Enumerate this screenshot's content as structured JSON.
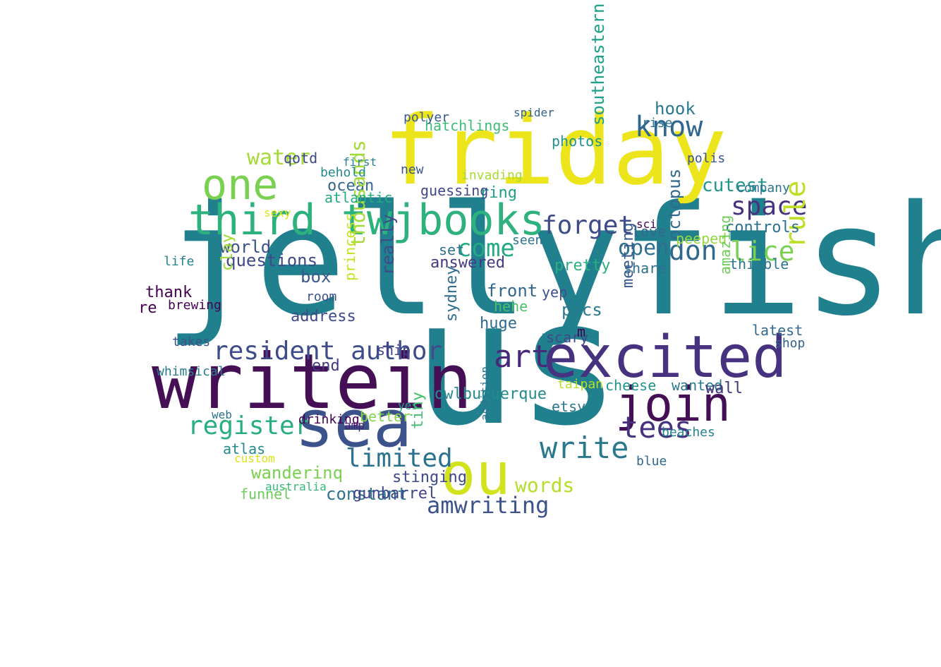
{
  "cloud": {
    "words": [
      {
        "text": "jellyfish",
        "color": "#21808d"
      },
      {
        "text": "us",
        "color": "#21808d"
      },
      {
        "text": "friday",
        "color": "#ece51b"
      },
      {
        "text": "writein",
        "color": "#440f55"
      },
      {
        "text": "sea",
        "color": "#3b528b"
      },
      {
        "text": "excited",
        "color": "#46327e"
      },
      {
        "text": "third twjbooks",
        "color": "#2db27d"
      },
      {
        "text": "one",
        "color": "#7ad151"
      },
      {
        "text": "ou",
        "color": "#d2e21b"
      },
      {
        "text": "join",
        "color": "#440f55"
      },
      {
        "text": "resident author",
        "color": "#3e4c8a"
      },
      {
        "text": "know",
        "color": "#31668e"
      },
      {
        "text": "register",
        "color": "#29af7f"
      },
      {
        "text": "write",
        "color": "#2a788e"
      },
      {
        "text": "tees",
        "color": "#46327e"
      },
      {
        "text": "limited",
        "color": "#2c728e"
      },
      {
        "text": "space",
        "color": "#46327e"
      },
      {
        "text": "forget",
        "color": "#3e4c8a"
      },
      {
        "text": "art",
        "color": "#482878"
      },
      {
        "text": "come",
        "color": "#23a983"
      },
      {
        "text": "don",
        "color": "#31688e"
      },
      {
        "text": "open",
        "color": "#2e6e8e"
      },
      {
        "text": "lice",
        "color": "#7ad151"
      },
      {
        "text": "rule",
        "color": "#bddf26"
      },
      {
        "text": "amwriting",
        "color": "#3b528b"
      },
      {
        "text": "words",
        "color": "#b5de2b"
      },
      {
        "text": "water",
        "color": "#a5db36"
      },
      {
        "text": "hook",
        "color": "#2a788e"
      },
      {
        "text": "cutest",
        "color": "#1f988b"
      },
      {
        "text": "questions",
        "color": "#3e4a89"
      },
      {
        "text": "controls",
        "color": "#2c728e"
      },
      {
        "text": "world",
        "color": "#3b528b"
      },
      {
        "text": "ocean",
        "color": "#31688e"
      },
      {
        "text": "answered",
        "color": "#443983"
      },
      {
        "text": "thousands",
        "color": "#a2da37"
      },
      {
        "text": "pics",
        "color": "#2a788e"
      },
      {
        "text": "huge",
        "color": "#306a8e"
      },
      {
        "text": "constant",
        "color": "#2c738e"
      },
      {
        "text": "wanderinq",
        "color": "#7ad151"
      },
      {
        "text": "cheese",
        "color": "#1f958b"
      },
      {
        "text": "wanted",
        "color": "#2a788e"
      },
      {
        "text": "thimble",
        "color": "#2a768e"
      },
      {
        "text": "octopus",
        "color": "#31688e"
      },
      {
        "text": "ring",
        "color": "#1fa187"
      },
      {
        "text": "owlbuquerque",
        "color": "#228c8d"
      },
      {
        "text": "etsy",
        "color": "#2a778e"
      },
      {
        "text": "wall",
        "color": "#46327e"
      },
      {
        "text": "latest",
        "color": "#30698e"
      },
      {
        "text": "share",
        "color": "#2d708e"
      },
      {
        "text": "box",
        "color": "#38598c"
      },
      {
        "text": "gunbarrel",
        "color": "#414487"
      },
      {
        "text": "funnel",
        "color": "#6ccd5a"
      },
      {
        "text": "stinging",
        "color": "#3e4989"
      },
      {
        "text": "thank",
        "color": "#440154"
      },
      {
        "text": "end",
        "color": "#443a83"
      },
      {
        "text": "hatchlings",
        "color": "#3fbc73"
      },
      {
        "text": "atlantic",
        "color": "#25ab82"
      },
      {
        "text": "photos",
        "color": "#20928c"
      },
      {
        "text": "pretty",
        "color": "#2ab07f"
      },
      {
        "text": "polyer",
        "color": "#38598c"
      },
      {
        "text": "address",
        "color": "#3e4a89"
      },
      {
        "text": "takes",
        "color": "#3b528b"
      },
      {
        "text": "beaches",
        "color": "#25848e"
      },
      {
        "text": "southeastern",
        "color": "#1fa088"
      },
      {
        "text": "australia",
        "color": "#35b779"
      },
      {
        "text": "scary",
        "color": "#3e4989"
      },
      {
        "text": "whimsical",
        "color": "#287c8e"
      },
      {
        "text": "life",
        "color": "#26828e"
      },
      {
        "text": "drinking",
        "color": "#440154"
      },
      {
        "text": "sydney",
        "color": "#2e6d8e"
      },
      {
        "text": "front",
        "color": "#31678e"
      },
      {
        "text": "peeped",
        "color": "#95d840"
      },
      {
        "text": "love",
        "color": "#31688e"
      },
      {
        "text": "princess",
        "color": "#c8e020"
      },
      {
        "text": "better",
        "color": "#84d44b"
      },
      {
        "text": "custom",
        "color": "#dde318"
      },
      {
        "text": "web",
        "color": "#2c728e"
      },
      {
        "text": "amazing",
        "color": "#6ccd5a"
      },
      {
        "text": "really",
        "color": "#3e4a89"
      },
      {
        "text": "taipan",
        "color": "#b5de2b"
      },
      {
        "text": "hehe",
        "color": "#4ac16d"
      },
      {
        "text": "yep",
        "color": "#3c508b"
      },
      {
        "text": "meeting",
        "color": "#38588c"
      },
      {
        "text": "brewing",
        "color": "#440154"
      },
      {
        "text": "polis",
        "color": "#3b528b"
      },
      {
        "text": "sexy",
        "color": "#e2e418"
      },
      {
        "text": "invading",
        "color": "#a8db34"
      },
      {
        "text": "atlas",
        "color": "#23898e"
      },
      {
        "text": "seen",
        "color": "#2c738e"
      },
      {
        "text": "company",
        "color": "#2b758e"
      },
      {
        "text": "ship",
        "color": "#414487"
      },
      {
        "text": "qotd",
        "color": "#3f4889"
      },
      {
        "text": "set",
        "color": "#2e6f8e"
      },
      {
        "text": "clay",
        "color": "#a0da39"
      },
      {
        "text": "behold",
        "color": "#23898e"
      },
      {
        "text": "first",
        "color": "#26818e"
      },
      {
        "text": "blue",
        "color": "#31688e"
      },
      {
        "text": "rise",
        "color": "#2c738e"
      },
      {
        "text": "addition",
        "color": "#2b758e"
      },
      {
        "text": "spider",
        "color": "#33628d"
      },
      {
        "text": "yes",
        "color": "#21a585"
      },
      {
        "text": "new",
        "color": "#3a548c"
      },
      {
        "text": "shop",
        "color": "#33628d"
      },
      {
        "text": "room",
        "color": "#3b528b"
      },
      {
        "text": "sci",
        "color": "#440154"
      },
      {
        "text": "tiny",
        "color": "#44bf70"
      },
      {
        "text": "amp",
        "color": "#481f70"
      },
      {
        "text": "guessing",
        "color": "#3f4889"
      },
      {
        "text": "re",
        "color": "#440154"
      },
      {
        "text": "m",
        "color": "#440154"
      }
    ]
  }
}
